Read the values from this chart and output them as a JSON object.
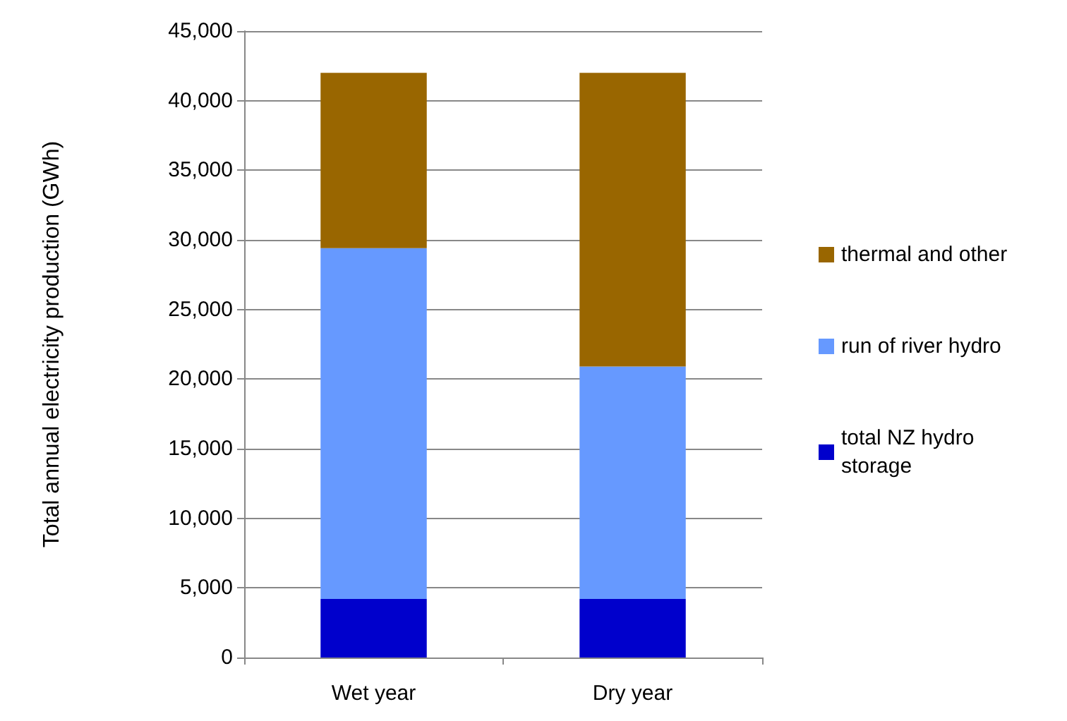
{
  "chart_data": {
    "type": "bar",
    "stacked": true,
    "ylabel": "Total annual electricity production (GWh)",
    "categories": [
      "Wet year",
      "Dry year"
    ],
    "series": [
      {
        "name": "total NZ hydro storage",
        "color": "#0000cc",
        "values": [
          4200,
          4200
        ]
      },
      {
        "name": "run of river hydro",
        "color": "#6699ff",
        "values": [
          25200,
          16700
        ]
      },
      {
        "name": "thermal and other",
        "color": "#996600",
        "values": [
          12600,
          21100
        ]
      }
    ],
    "ylim": [
      0,
      45000
    ],
    "yticks": [
      0,
      {
        "value": 5000,
        "label": "5,000"
      },
      {
        "value": 10000,
        "label": "10,000"
      },
      {
        "value": 15000,
        "label": "15,000"
      },
      {
        "value": 20000,
        "label": "20,000"
      },
      {
        "value": 25000,
        "label": "25,000"
      },
      {
        "value": 30000,
        "label": "30,000"
      },
      {
        "value": 35000,
        "label": "35,000"
      },
      {
        "value": 40000,
        "label": "40,000"
      },
      {
        "value": 45000,
        "label": "45,000"
      }
    ],
    "grid": "y",
    "legend": "right"
  }
}
